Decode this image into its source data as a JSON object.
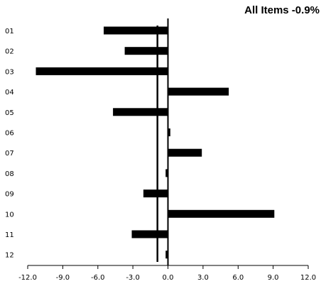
{
  "chart_data": {
    "type": "bar",
    "orientation": "horizontal",
    "title": "All Items -0.9%",
    "categories": [
      "01",
      "02",
      "03",
      "04",
      "05",
      "06",
      "07",
      "08",
      "09",
      "10",
      "11",
      "12"
    ],
    "values": [
      -5.5,
      -3.7,
      -11.3,
      5.2,
      -4.7,
      0.2,
      2.9,
      -0.2,
      -2.1,
      9.1,
      -3.1,
      -0.2
    ],
    "xlim": [
      -12.0,
      12.0
    ],
    "xticks": [
      -12.0,
      -9.0,
      -6.0,
      -3.0,
      0.0,
      3.0,
      6.0,
      9.0,
      12.0
    ],
    "xtick_labels": [
      "-12.0",
      "-9.0",
      "-6.0",
      "-3.0",
      "0.0",
      "3.0",
      "6.0",
      "9.0",
      "12.0"
    ],
    "reference_line": -0.9,
    "grid": false,
    "bar_color": "#000000"
  }
}
